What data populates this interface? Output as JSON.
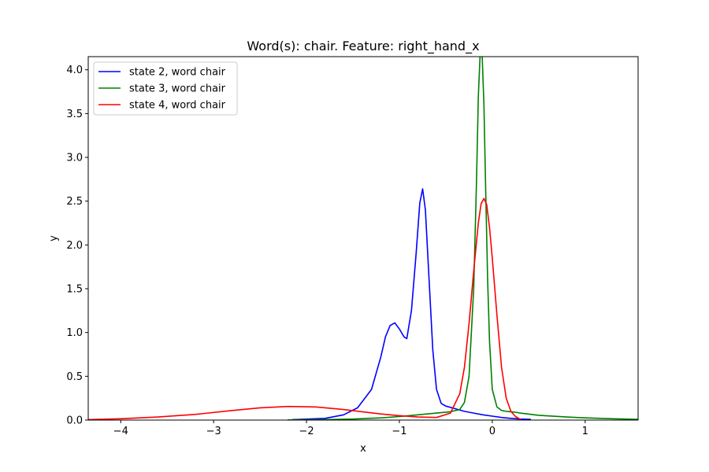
{
  "chart_data": {
    "type": "line",
    "title": "Word(s): chair. Feature: right_hand_x",
    "xlabel": "x",
    "ylabel": "y",
    "xlim": [
      -4.35,
      1.57
    ],
    "ylim": [
      0,
      4.15
    ],
    "xticks": [
      -4,
      -3,
      -2,
      -1,
      0,
      1
    ],
    "xtick_labels": [
      "−4",
      "−3",
      "−2",
      "−1",
      "0",
      "1"
    ],
    "yticks": [
      0,
      0.5,
      1,
      1.5,
      2,
      2.5,
      3,
      3.5,
      4
    ],
    "ytick_labels": [
      "0.0",
      "0.5",
      "1.0",
      "1.5",
      "2.0",
      "2.5",
      "3.0",
      "3.5",
      "4.0"
    ],
    "grid": false,
    "legend_position": "top-left",
    "series": [
      {
        "name": "state 2, word chair",
        "color": "#0000ff",
        "x": [
          -2.15,
          -1.8,
          -1.6,
          -1.45,
          -1.3,
          -1.2,
          -1.15,
          -1.1,
          -1.05,
          -1.0,
          -0.95,
          -0.92,
          -0.87,
          -0.82,
          -0.78,
          -0.75,
          -0.72,
          -0.68,
          -0.64,
          -0.6,
          -0.55,
          -0.5,
          -0.4,
          -0.3,
          -0.2,
          -0.1,
          0.0,
          0.1,
          0.2,
          0.3,
          0.41
        ],
        "y": [
          0.005,
          0.02,
          0.06,
          0.14,
          0.35,
          0.72,
          0.95,
          1.08,
          1.11,
          1.04,
          0.95,
          0.93,
          1.25,
          1.9,
          2.48,
          2.64,
          2.4,
          1.6,
          0.8,
          0.35,
          0.19,
          0.16,
          0.13,
          0.1,
          0.08,
          0.06,
          0.045,
          0.03,
          0.02,
          0.012,
          0.008
        ]
      },
      {
        "name": "state 3, word chair",
        "color": "#008000",
        "x": [
          -2.2,
          -1.8,
          -1.5,
          -1.2,
          -1.0,
          -0.8,
          -0.6,
          -0.45,
          -0.35,
          -0.3,
          -0.25,
          -0.2,
          -0.17,
          -0.15,
          -0.13,
          -0.11,
          -0.09,
          -0.07,
          -0.05,
          -0.03,
          0.0,
          0.05,
          0.1,
          0.15,
          0.2,
          0.25,
          0.3,
          0.5,
          0.8,
          1.0,
          1.3,
          1.57
        ],
        "y": [
          0.002,
          0.005,
          0.012,
          0.025,
          0.04,
          0.06,
          0.08,
          0.095,
          0.12,
          0.2,
          0.5,
          1.5,
          2.7,
          3.7,
          4.2,
          4.2,
          3.6,
          2.6,
          1.6,
          0.9,
          0.35,
          0.15,
          0.11,
          0.1,
          0.095,
          0.09,
          0.08,
          0.055,
          0.035,
          0.025,
          0.015,
          0.008
        ]
      },
      {
        "name": "state 4, word chair",
        "color": "#ff0000",
        "x": [
          -4.35,
          -4.0,
          -3.6,
          -3.2,
          -2.8,
          -2.5,
          -2.2,
          -1.9,
          -1.6,
          -1.4,
          -1.2,
          -1.0,
          -0.8,
          -0.6,
          -0.45,
          -0.35,
          -0.3,
          -0.25,
          -0.2,
          -0.15,
          -0.12,
          -0.09,
          -0.06,
          -0.03,
          0.0,
          0.05,
          0.1,
          0.15,
          0.2,
          0.25,
          0.3
        ],
        "y": [
          0.005,
          0.015,
          0.035,
          0.065,
          0.11,
          0.14,
          0.155,
          0.15,
          0.12,
          0.095,
          0.07,
          0.05,
          0.035,
          0.03,
          0.08,
          0.3,
          0.6,
          1.1,
          1.7,
          2.25,
          2.47,
          2.53,
          2.46,
          2.2,
          1.85,
          1.2,
          0.6,
          0.25,
          0.1,
          0.04,
          0.01
        ]
      }
    ]
  }
}
